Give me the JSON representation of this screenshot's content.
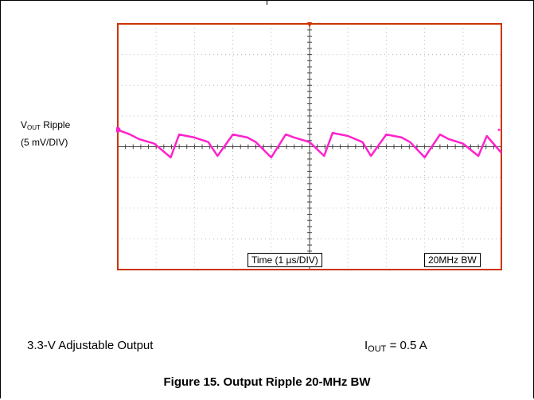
{
  "chart_data": {
    "type": "line",
    "grid": true,
    "xlabel": "Time (1 µs/DIV)",
    "bandwidth_label": "20MHz BW",
    "ylabel_main": "V",
    "ylabel_sub": "OUT",
    "ylabel_rest": " Ripple",
    "ylabel_scale": "(5 mV/DIV)",
    "divisions": {
      "x": 10,
      "y": 8
    },
    "xlim": [
      0,
      10
    ],
    "ylim": [
      -4,
      4
    ],
    "series": [
      {
        "color": "#ff22cc",
        "x": [
          0,
          0.32,
          0.55,
          0.95,
          1.38,
          1.6,
          2.0,
          2.36,
          2.6,
          3.0,
          3.38,
          3.6,
          4.0,
          4.38,
          4.6,
          5.0,
          5.38,
          5.6,
          6.0,
          6.38,
          6.6,
          7.0,
          7.4,
          7.62,
          8.0,
          8.4,
          8.62,
          9.0,
          9.4,
          9.62,
          10.0
        ],
        "values": [
          0.55,
          0.4,
          0.25,
          0.1,
          -0.35,
          0.4,
          0.3,
          0.15,
          -0.3,
          0.4,
          0.3,
          0.15,
          -0.35,
          0.4,
          0.3,
          0.15,
          -0.3,
          0.45,
          0.35,
          0.15,
          -0.3,
          0.4,
          0.3,
          0.15,
          -0.35,
          0.4,
          0.25,
          0.1,
          -0.3,
          0.35,
          -0.2
        ]
      }
    ]
  },
  "conditions": {
    "left": "3.3-V Adjustable Output",
    "right_main": "I",
    "right_sub": "OUT",
    "right_rest": " = 0.5 A"
  },
  "caption": "Figure 15. Output Ripple 20-MHz BW",
  "colors": {
    "trace": "#ff22cc",
    "border": "#cc3300",
    "grid": "#b8b8b8",
    "axis": "#444444"
  }
}
